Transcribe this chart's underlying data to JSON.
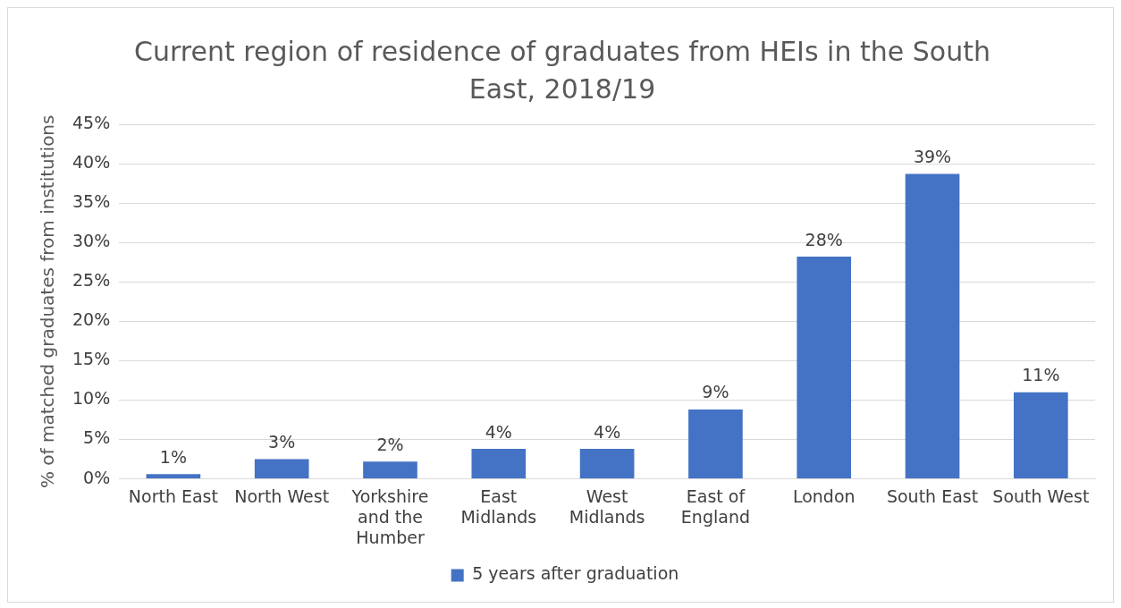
{
  "chart_data": {
    "type": "bar",
    "title": "Current region of residence of graduates from HEIs in the South East, 2018/19",
    "ylabel": "% of matched graduates from institutions",
    "categories": [
      "North East",
      "North West",
      "Yorkshire and the Humber",
      "East Midlands",
      "West Midlands",
      "East of England",
      "London",
      "South East",
      "South West"
    ],
    "series": [
      {
        "name": "5 years after graduation",
        "color": "#4472c4",
        "values": [
          0.6,
          2.5,
          2.2,
          3.8,
          3.8,
          8.8,
          28.2,
          38.7,
          11
        ],
        "value_labels": [
          "1%",
          "3%",
          "2%",
          "4%",
          "4%",
          "9%",
          "28%",
          "39%",
          "11%"
        ]
      }
    ],
    "ylim": [
      0,
      45
    ],
    "yticks": [
      {
        "value": 0,
        "label": "0%"
      },
      {
        "value": 5,
        "label": "5%"
      },
      {
        "value": 10,
        "label": "10%"
      },
      {
        "value": 15,
        "label": "15%"
      },
      {
        "value": 20,
        "label": "20%"
      },
      {
        "value": 25,
        "label": "25%"
      },
      {
        "value": 30,
        "label": "30%"
      },
      {
        "value": 35,
        "label": "35%"
      },
      {
        "value": 40,
        "label": "40%"
      },
      {
        "value": 45,
        "label": "45%"
      }
    ],
    "grid": "y",
    "legend": "bottom"
  }
}
